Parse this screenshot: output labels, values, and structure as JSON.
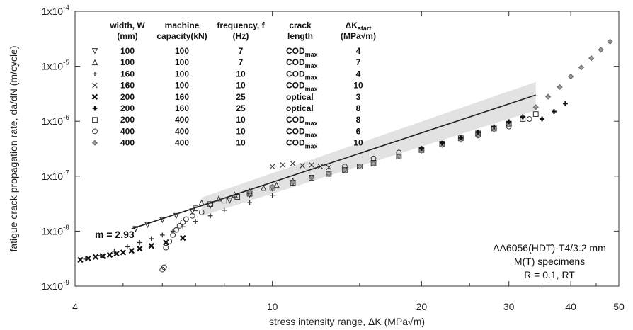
{
  "chart_data": {
    "type": "scatter",
    "xscale": "log",
    "yscale": "log",
    "xlim": [
      4,
      50
    ],
    "ylim": [
      1e-09,
      0.0001
    ],
    "xlabel": "stress intensity range, ΔK (MPa√m)",
    "ylabel": "fatigue crack propagation rate, da/dN (m/cycle)",
    "xticks": [
      {
        "value": 4,
        "label": "4"
      },
      {
        "value": 10,
        "label": "10"
      },
      {
        "value": 20,
        "label": "20"
      },
      {
        "value": 30,
        "label": "30"
      },
      {
        "value": 40,
        "label": "40"
      },
      {
        "value": 50,
        "label": "50"
      }
    ],
    "yticks": [
      {
        "value": 1e-09,
        "mantissa": "1x10",
        "exp": "-9"
      },
      {
        "value": 1e-08,
        "mantissa": "1x10",
        "exp": "-8"
      },
      {
        "value": 1e-07,
        "mantissa": "1x10",
        "exp": "-7"
      },
      {
        "value": 1e-06,
        "mantissa": "1x10",
        "exp": "-6"
      },
      {
        "value": 1e-05,
        "mantissa": "1x10",
        "exp": "-5"
      },
      {
        "value": 0.0001,
        "mantissa": "1x10",
        "exp": "-4"
      }
    ],
    "legend": {
      "headers": [
        {
          "line1": "width, W",
          "line2": "(mm)"
        },
        {
          "line1": "machine",
          "line2": "capacity(kN)"
        },
        {
          "line1": "frequency, f",
          "line2": "(Hz)"
        },
        {
          "line1": "crack",
          "line2": "length"
        },
        {
          "line1": "ΔK",
          "line1_sub": "start",
          "line2": "(MPa√m)"
        }
      ],
      "rows": [
        {
          "marker": "tri-down",
          "glyph": "▽",
          "width": "100",
          "capacity": "100",
          "frequency": "7",
          "crack": "COD",
          "crack_sub": "max",
          "dk": "4"
        },
        {
          "marker": "tri-up",
          "glyph": "△",
          "width": "100",
          "capacity": "100",
          "frequency": "7",
          "crack": "COD",
          "crack_sub": "max",
          "dk": "7"
        },
        {
          "marker": "plus",
          "glyph": "+",
          "width": "160",
          "capacity": "100",
          "frequency": "10",
          "crack": "COD",
          "crack_sub": "max",
          "dk": "4"
        },
        {
          "marker": "cross",
          "glyph": "×",
          "width": "160",
          "capacity": "100",
          "frequency": "10",
          "crack": "COD",
          "crack_sub": "max",
          "dk": "10"
        },
        {
          "marker": "star-cross",
          "glyph": "✖",
          "width": "200",
          "capacity": "160",
          "frequency": "25",
          "crack": "optical",
          "crack_sub": "",
          "dk": "3"
        },
        {
          "marker": "star-plus",
          "glyph": "✚",
          "width": "200",
          "capacity": "160",
          "frequency": "25",
          "crack": "optical",
          "crack_sub": "",
          "dk": "8"
        },
        {
          "marker": "square",
          "glyph": "□",
          "width": "200",
          "capacity": "400",
          "frequency": "10",
          "crack": "COD",
          "crack_sub": "max",
          "dk": "8"
        },
        {
          "marker": "circle",
          "glyph": "○",
          "width": "400",
          "capacity": "400",
          "frequency": "10",
          "crack": "COD",
          "crack_sub": "max",
          "dk": "6"
        },
        {
          "marker": "diamond",
          "glyph": "◇",
          "width": "400",
          "capacity": "400",
          "frequency": "10",
          "crack": "COD",
          "crack_sub": "max",
          "dk": "10"
        }
      ]
    },
    "slope_label": "m = 2.93",
    "fit_line": {
      "m": 2.93,
      "x": [
        5.2,
        34
      ],
      "y": [
        1.1e-08,
        3e-06
      ]
    },
    "info_lines": [
      "AA6056(HDT)-T4/3.2 mm",
      "M(T) specimens",
      "R = 0.1, RT"
    ],
    "series": [
      {
        "marker": "star-cross",
        "x": [
          4.1,
          4.25,
          4.4,
          4.55,
          4.7,
          4.85,
          5.0,
          5.2,
          5.4,
          5.7,
          6.1,
          6.6
        ],
        "y": [
          3e-09,
          3.2e-09,
          3.4e-09,
          3.5e-09,
          3.7e-09,
          3.9e-09,
          4.1e-09,
          4.4e-09,
          4.8e-09,
          5.4e-09,
          6.2e-09,
          7.5e-09
        ]
      },
      {
        "marker": "plus",
        "x": [
          4.2,
          4.5,
          4.8,
          5.1,
          5.4,
          5.7,
          6.0,
          6.3,
          6.6,
          7.0,
          7.5,
          8.0,
          9.0,
          10.0
        ],
        "y": [
          3.1e-09,
          3.6e-09,
          4.3e-09,
          5.2e-09,
          6.2e-09,
          7.3e-09,
          8.5e-09,
          1e-08,
          1.2e-08,
          1.5e-08,
          1.9e-08,
          2.4e-08,
          3.3e-08,
          4.5e-08
        ]
      },
      {
        "marker": "tri-down",
        "x": [
          5.3,
          5.6,
          6.0,
          6.4,
          6.9,
          7.5,
          8.2,
          9.0,
          10.0,
          11.0,
          12.0
        ],
        "y": [
          1.1e-08,
          1.3e-08,
          1.6e-08,
          1.9e-08,
          2.3e-08,
          2.9e-08,
          3.6e-08,
          4.6e-08,
          6e-08,
          7.6e-08,
          9.4e-08
        ]
      },
      {
        "marker": "circle",
        "x": [
          6.0,
          6.05,
          6.1,
          6.2,
          6.3,
          6.4,
          6.5,
          6.6,
          6.7,
          6.9,
          7.2,
          14.0,
          16.0,
          18.0,
          22.0,
          26.0,
          30.0,
          33.0
        ],
        "y": [
          2e-09,
          2.2e-09,
          5e-09,
          6.5e-09,
          8.5e-09,
          1.05e-08,
          1.25e-08,
          1.45e-08,
          1.65e-08,
          1.9e-08,
          2.2e-08,
          1.5e-07,
          2.1e-07,
          2.7e-07,
          3.8e-07,
          5.5e-07,
          8e-07,
          1.1e-06
        ]
      },
      {
        "marker": "square",
        "x": [
          7.0,
          7.5,
          8.0,
          8.5,
          9.0,
          10.0,
          11.0,
          12.0,
          13.0,
          14.0,
          15.0,
          16.0,
          18.0,
          20.0,
          22.0,
          24.0,
          26.0,
          28.0,
          30.0,
          32.0,
          34.0
        ],
        "y": [
          2.6e-08,
          3.1e-08,
          3.6e-08,
          4.2e-08,
          4.8e-08,
          6.1e-08,
          7.6e-08,
          9.3e-08,
          1.1e-07,
          1.3e-07,
          1.5e-07,
          1.75e-07,
          2.3e-07,
          3e-07,
          3.9e-07,
          4.9e-07,
          6e-07,
          7.4e-07,
          9e-07,
          1.1e-06,
          1.35e-06
        ]
      },
      {
        "marker": "tri-up",
        "x": [
          7.2,
          7.8,
          8.4,
          9.0,
          9.6,
          10.2,
          11.0
        ],
        "y": [
          3.3e-08,
          3.9e-08,
          4.6e-08,
          5.3e-08,
          6.1e-08,
          6.9e-08,
          8.2e-08
        ]
      },
      {
        "marker": "cross",
        "x": [
          10.0,
          10.5,
          11.0,
          11.5,
          12.0,
          12.5,
          13.0
        ],
        "y": [
          1.5e-07,
          1.6e-07,
          1.7e-07,
          1.55e-07,
          1.6e-07,
          1.5e-07,
          1.45e-07
        ]
      },
      {
        "marker": "diamond",
        "x": [
          9.0,
          10.0,
          11.0,
          12.0,
          13.0,
          14.0,
          15.0,
          16.0,
          18.0,
          20.0,
          22.0,
          24.0,
          26.0,
          28.0,
          30.0,
          32.0,
          34.0,
          36.0,
          38.0,
          40.0,
          42.0,
          44.0,
          46.0,
          48.0
        ],
        "y": [
          5.2e-08,
          6.4e-08,
          7.8e-08,
          9.4e-08,
          1.1e-07,
          1.3e-07,
          1.5e-07,
          1.7e-07,
          2.3e-07,
          2.9e-07,
          3.7e-07,
          4.6e-07,
          5.7e-07,
          7e-07,
          8.8e-07,
          1.2e-06,
          1.8e-06,
          2.8e-06,
          4.2e-06,
          6.5e-06,
          9.5e-06,
          1.4e-05,
          2e-05,
          2.8e-05
        ]
      },
      {
        "marker": "star-plus",
        "x": [
          20.0,
          22.0,
          24.0,
          26.0,
          28.0,
          30.0,
          32.0,
          35.0,
          37.0,
          39.0
        ],
        "y": [
          3.2e-07,
          4e-07,
          5e-07,
          6.3e-07,
          7.9e-07,
          9.8e-07,
          1.2e-06,
          1.1e-06,
          1.5e-06,
          2.1e-06
        ]
      }
    ]
  }
}
